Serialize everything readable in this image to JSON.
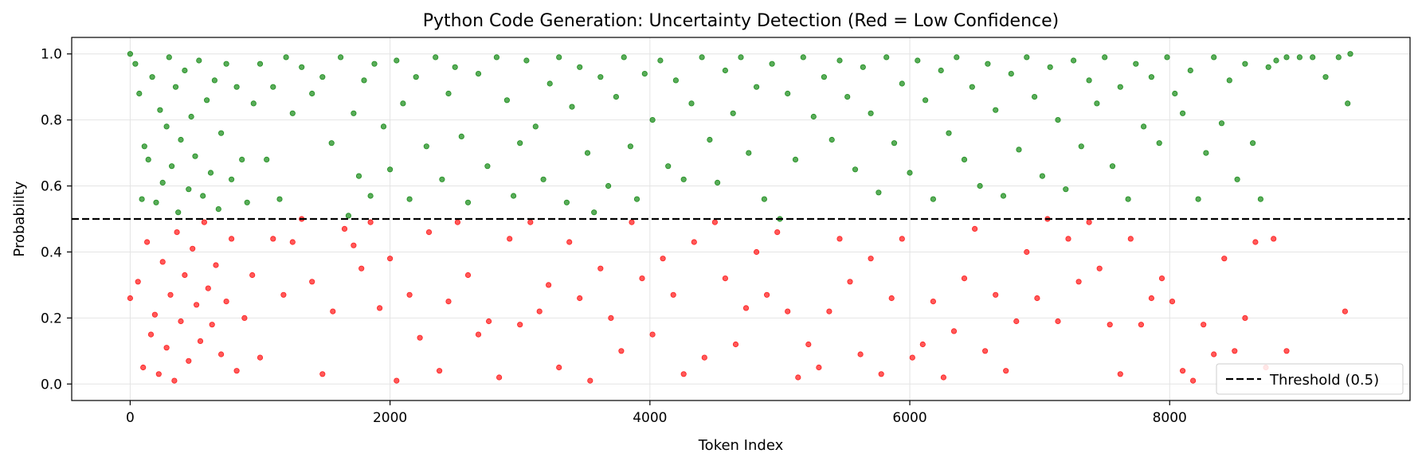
{
  "chart_data": {
    "type": "scatter",
    "title": "Python Code Generation: Uncertainty Detection (Red = Low Confidence)",
    "xlabel": "Token Index",
    "ylabel": "Probability",
    "xlim": [
      -450,
      9850
    ],
    "ylim": [
      -0.05,
      1.05
    ],
    "xticks": [
      0,
      2000,
      4000,
      6000,
      8000
    ],
    "yticks": [
      0.0,
      0.2,
      0.4,
      0.6,
      0.8,
      1.0
    ],
    "xtick_labels": [
      "0",
      "2000",
      "4000",
      "6000",
      "8000"
    ],
    "ytick_labels": [
      "0.0",
      "0.2",
      "0.4",
      "0.6",
      "0.8",
      "1.0"
    ],
    "grid": true,
    "threshold": {
      "value": 0.5,
      "label": "Threshold (0.5)",
      "style": "dashed",
      "color": "#000000"
    },
    "legend_position": "bottom-right",
    "colors": {
      "high": "#008000",
      "low": "#ff0000"
    },
    "series": [
      {
        "color": "#008000",
        "points": [
          [
            0,
            1.0
          ],
          [
            40,
            0.97
          ],
          [
            70,
            0.88
          ],
          [
            90,
            0.56
          ],
          [
            110,
            0.72
          ],
          [
            140,
            0.68
          ],
          [
            170,
            0.93
          ],
          [
            200,
            0.55
          ],
          [
            230,
            0.83
          ],
          [
            250,
            0.61
          ],
          [
            280,
            0.78
          ],
          [
            300,
            0.99
          ],
          [
            320,
            0.66
          ],
          [
            350,
            0.9
          ],
          [
            370,
            0.52
          ],
          [
            390,
            0.74
          ],
          [
            420,
            0.95
          ],
          [
            450,
            0.59
          ],
          [
            470,
            0.81
          ],
          [
            500,
            0.69
          ],
          [
            530,
            0.98
          ],
          [
            560,
            0.57
          ],
          [
            590,
            0.86
          ],
          [
            620,
            0.64
          ],
          [
            650,
            0.92
          ],
          [
            680,
            0.53
          ],
          [
            700,
            0.76
          ],
          [
            740,
            0.97
          ],
          [
            780,
            0.62
          ],
          [
            820,
            0.9
          ],
          [
            860,
            0.68
          ],
          [
            900,
            0.55
          ],
          [
            950,
            0.85
          ],
          [
            1000,
            0.97
          ],
          [
            1050,
            0.68
          ],
          [
            1100,
            0.9
          ],
          [
            1150,
            0.56
          ],
          [
            1200,
            0.99
          ],
          [
            1250,
            0.82
          ],
          [
            1320,
            0.96
          ],
          [
            1400,
            0.88
          ],
          [
            1480,
            0.93
          ],
          [
            1550,
            0.73
          ],
          [
            1620,
            0.99
          ],
          [
            1680,
            0.51
          ],
          [
            1720,
            0.82
          ],
          [
            1760,
            0.63
          ],
          [
            1800,
            0.92
          ],
          [
            1850,
            0.57
          ],
          [
            1880,
            0.97
          ],
          [
            1950,
            0.78
          ],
          [
            2000,
            0.65
          ],
          [
            2050,
            0.98
          ],
          [
            2100,
            0.85
          ],
          [
            2150,
            0.56
          ],
          [
            2200,
            0.93
          ],
          [
            2280,
            0.72
          ],
          [
            2350,
            0.99
          ],
          [
            2400,
            0.62
          ],
          [
            2450,
            0.88
          ],
          [
            2500,
            0.96
          ],
          [
            2550,
            0.75
          ],
          [
            2600,
            0.55
          ],
          [
            2680,
            0.94
          ],
          [
            2750,
            0.66
          ],
          [
            2820,
            0.99
          ],
          [
            2900,
            0.86
          ],
          [
            2950,
            0.57
          ],
          [
            3000,
            0.73
          ],
          [
            3050,
            0.98
          ],
          [
            3120,
            0.78
          ],
          [
            3180,
            0.62
          ],
          [
            3230,
            0.91
          ],
          [
            3300,
            0.99
          ],
          [
            3360,
            0.55
          ],
          [
            3400,
            0.84
          ],
          [
            3460,
            0.96
          ],
          [
            3520,
            0.7
          ],
          [
            3570,
            0.52
          ],
          [
            3620,
            0.93
          ],
          [
            3680,
            0.6
          ],
          [
            3740,
            0.87
          ],
          [
            3800,
            0.99
          ],
          [
            3850,
            0.72
          ],
          [
            3900,
            0.56
          ],
          [
            3960,
            0.94
          ],
          [
            4020,
            0.8
          ],
          [
            4080,
            0.98
          ],
          [
            4140,
            0.66
          ],
          [
            4200,
            0.92
          ],
          [
            4260,
            0.62
          ],
          [
            4320,
            0.85
          ],
          [
            4400,
            0.99
          ],
          [
            4460,
            0.74
          ],
          [
            4520,
            0.61
          ],
          [
            4580,
            0.95
          ],
          [
            4640,
            0.82
          ],
          [
            4700,
            0.99
          ],
          [
            4760,
            0.7
          ],
          [
            4820,
            0.9
          ],
          [
            4880,
            0.56
          ],
          [
            4940,
            0.97
          ],
          [
            5000,
            0.5
          ],
          [
            5060,
            0.88
          ],
          [
            5120,
            0.68
          ],
          [
            5180,
            0.99
          ],
          [
            5260,
            0.81
          ],
          [
            5340,
            0.93
          ],
          [
            5400,
            0.74
          ],
          [
            5460,
            0.98
          ],
          [
            5520,
            0.87
          ],
          [
            5580,
            0.65
          ],
          [
            5640,
            0.96
          ],
          [
            5700,
            0.82
          ],
          [
            5760,
            0.58
          ],
          [
            5820,
            0.99
          ],
          [
            5880,
            0.73
          ],
          [
            5940,
            0.91
          ],
          [
            6000,
            0.64
          ],
          [
            6060,
            0.98
          ],
          [
            6120,
            0.86
          ],
          [
            6180,
            0.56
          ],
          [
            6240,
            0.95
          ],
          [
            6300,
            0.76
          ],
          [
            6360,
            0.99
          ],
          [
            6420,
            0.68
          ],
          [
            6480,
            0.9
          ],
          [
            6540,
            0.6
          ],
          [
            6600,
            0.97
          ],
          [
            6660,
            0.83
          ],
          [
            6720,
            0.57
          ],
          [
            6780,
            0.94
          ],
          [
            6840,
            0.71
          ],
          [
            6900,
            0.99
          ],
          [
            6960,
            0.87
          ],
          [
            7020,
            0.63
          ],
          [
            7080,
            0.96
          ],
          [
            7140,
            0.8
          ],
          [
            7200,
            0.59
          ],
          [
            7260,
            0.98
          ],
          [
            7320,
            0.72
          ],
          [
            7380,
            0.92
          ],
          [
            7440,
            0.85
          ],
          [
            7500,
            0.99
          ],
          [
            7560,
            0.66
          ],
          [
            7620,
            0.9
          ],
          [
            7680,
            0.56
          ],
          [
            7740,
            0.97
          ],
          [
            7800,
            0.78
          ],
          [
            7860,
            0.93
          ],
          [
            7920,
            0.73
          ],
          [
            7980,
            0.99
          ],
          [
            8040,
            0.88
          ],
          [
            8100,
            0.82
          ],
          [
            8160,
            0.95
          ],
          [
            8220,
            0.56
          ],
          [
            8280,
            0.7
          ],
          [
            8340,
            0.99
          ],
          [
            8400,
            0.79
          ],
          [
            8460,
            0.92
          ],
          [
            8520,
            0.62
          ],
          [
            8580,
            0.97
          ],
          [
            8640,
            0.73
          ],
          [
            8700,
            0.56
          ],
          [
            8760,
            0.96
          ],
          [
            8820,
            0.98
          ],
          [
            8900,
            0.99
          ],
          [
            9000,
            0.99
          ],
          [
            9100,
            0.99
          ],
          [
            9200,
            0.93
          ],
          [
            9300,
            0.99
          ],
          [
            9370,
            0.85
          ],
          [
            9390,
            1.0
          ]
        ]
      },
      {
        "color": "#ff0000",
        "points": [
          [
            0,
            0.26
          ],
          [
            60,
            0.31
          ],
          [
            100,
            0.05
          ],
          [
            130,
            0.43
          ],
          [
            160,
            0.15
          ],
          [
            190,
            0.21
          ],
          [
            220,
            0.03
          ],
          [
            250,
            0.37
          ],
          [
            280,
            0.11
          ],
          [
            310,
            0.27
          ],
          [
            340,
            0.01
          ],
          [
            360,
            0.46
          ],
          [
            390,
            0.19
          ],
          [
            420,
            0.33
          ],
          [
            450,
            0.07
          ],
          [
            480,
            0.41
          ],
          [
            510,
            0.24
          ],
          [
            540,
            0.13
          ],
          [
            570,
            0.49
          ],
          [
            600,
            0.29
          ],
          [
            630,
            0.18
          ],
          [
            660,
            0.36
          ],
          [
            700,
            0.09
          ],
          [
            740,
            0.25
          ],
          [
            780,
            0.44
          ],
          [
            820,
            0.04
          ],
          [
            880,
            0.2
          ],
          [
            940,
            0.33
          ],
          [
            1000,
            0.08
          ],
          [
            1100,
            0.44
          ],
          [
            1180,
            0.27
          ],
          [
            1250,
            0.43
          ],
          [
            1320,
            0.5
          ],
          [
            1400,
            0.31
          ],
          [
            1480,
            0.03
          ],
          [
            1560,
            0.22
          ],
          [
            1650,
            0.47
          ],
          [
            1720,
            0.42
          ],
          [
            1780,
            0.35
          ],
          [
            1850,
            0.49
          ],
          [
            1920,
            0.23
          ],
          [
            2000,
            0.38
          ],
          [
            2050,
            0.01
          ],
          [
            2150,
            0.27
          ],
          [
            2230,
            0.14
          ],
          [
            2300,
            0.46
          ],
          [
            2380,
            0.04
          ],
          [
            2450,
            0.25
          ],
          [
            2520,
            0.49
          ],
          [
            2600,
            0.33
          ],
          [
            2680,
            0.15
          ],
          [
            2760,
            0.19
          ],
          [
            2840,
            0.02
          ],
          [
            2920,
            0.44
          ],
          [
            3000,
            0.18
          ],
          [
            3080,
            0.49
          ],
          [
            3150,
            0.22
          ],
          [
            3220,
            0.3
          ],
          [
            3300,
            0.05
          ],
          [
            3380,
            0.43
          ],
          [
            3460,
            0.26
          ],
          [
            3540,
            0.01
          ],
          [
            3620,
            0.35
          ],
          [
            3700,
            0.2
          ],
          [
            3780,
            0.1
          ],
          [
            3860,
            0.49
          ],
          [
            3940,
            0.32
          ],
          [
            4020,
            0.15
          ],
          [
            4100,
            0.38
          ],
          [
            4180,
            0.27
          ],
          [
            4260,
            0.03
          ],
          [
            4340,
            0.43
          ],
          [
            4420,
            0.08
          ],
          [
            4500,
            0.49
          ],
          [
            4580,
            0.32
          ],
          [
            4660,
            0.12
          ],
          [
            4740,
            0.23
          ],
          [
            4820,
            0.4
          ],
          [
            4900,
            0.27
          ],
          [
            4980,
            0.46
          ],
          [
            5060,
            0.22
          ],
          [
            5140,
            0.02
          ],
          [
            5220,
            0.12
          ],
          [
            5300,
            0.05
          ],
          [
            5380,
            0.22
          ],
          [
            5460,
            0.44
          ],
          [
            5540,
            0.31
          ],
          [
            5620,
            0.09
          ],
          [
            5700,
            0.38
          ],
          [
            5780,
            0.03
          ],
          [
            5860,
            0.26
          ],
          [
            5940,
            0.44
          ],
          [
            6020,
            0.08
          ],
          [
            6100,
            0.12
          ],
          [
            6180,
            0.25
          ],
          [
            6260,
            0.02
          ],
          [
            6340,
            0.16
          ],
          [
            6420,
            0.32
          ],
          [
            6500,
            0.47
          ],
          [
            6580,
            0.1
          ],
          [
            6660,
            0.27
          ],
          [
            6740,
            0.04
          ],
          [
            6820,
            0.19
          ],
          [
            6900,
            0.4
          ],
          [
            6980,
            0.26
          ],
          [
            7060,
            0.5
          ],
          [
            7140,
            0.19
          ],
          [
            7220,
            0.44
          ],
          [
            7300,
            0.31
          ],
          [
            7380,
            0.49
          ],
          [
            7460,
            0.35
          ],
          [
            7540,
            0.18
          ],
          [
            7620,
            0.03
          ],
          [
            7700,
            0.44
          ],
          [
            7780,
            0.18
          ],
          [
            7860,
            0.26
          ],
          [
            7940,
            0.32
          ],
          [
            8020,
            0.25
          ],
          [
            8100,
            0.04
          ],
          [
            8180,
            0.01
          ],
          [
            8260,
            0.18
          ],
          [
            8340,
            0.09
          ],
          [
            8420,
            0.38
          ],
          [
            8500,
            0.1
          ],
          [
            8580,
            0.2
          ],
          [
            8660,
            0.43
          ],
          [
            8740,
            0.05
          ],
          [
            8800,
            0.44
          ],
          [
            8900,
            0.1
          ],
          [
            9350,
            0.22
          ]
        ]
      }
    ]
  }
}
